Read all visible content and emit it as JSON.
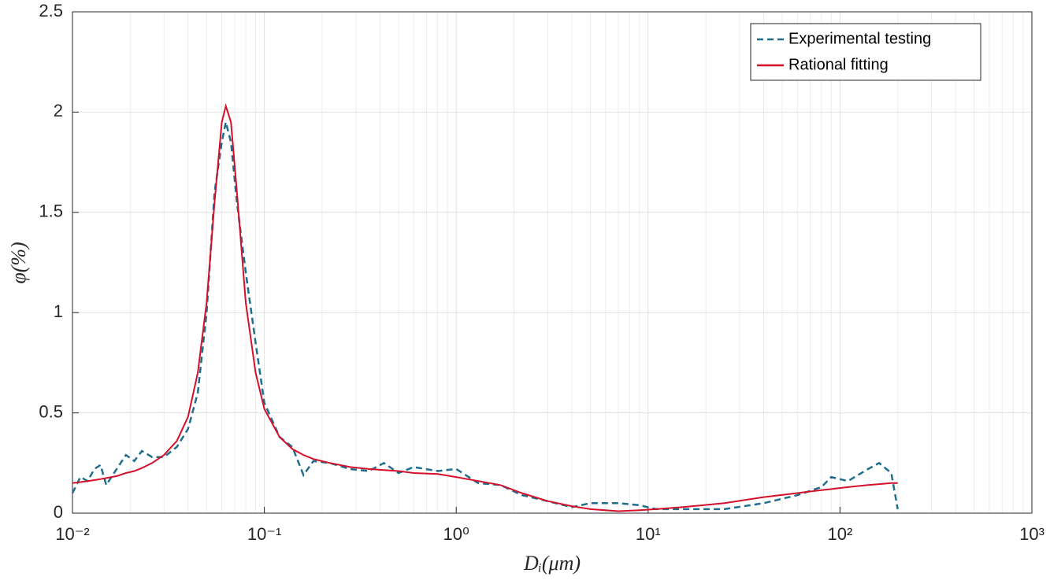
{
  "chart_data": {
    "type": "line",
    "x_label": "Dᵢ(μm)",
    "y_label": "φ(%)",
    "x": [
      0.01,
      0.011,
      0.012,
      0.013,
      0.014,
      0.015,
      0.017,
      0.019,
      0.021,
      0.023,
      0.026,
      0.03,
      0.035,
      0.04,
      0.045,
      0.05,
      0.055,
      0.06,
      0.063,
      0.067,
      0.072,
      0.08,
      0.09,
      0.1,
      0.12,
      0.14,
      0.16,
      0.18,
      0.22,
      0.28,
      0.35,
      0.42,
      0.5,
      0.6,
      0.8,
      1.0,
      1.3,
      1.7,
      2.2,
      3,
      4,
      5,
      7,
      9,
      11,
      15,
      25,
      40,
      60,
      80,
      90,
      110,
      140,
      160,
      185,
      200
    ],
    "series": [
      {
        "name": "Experimental testing",
        "color": "#1f6e8c",
        "dashed": true,
        "values": [
          0.1,
          0.18,
          0.16,
          0.22,
          0.24,
          0.14,
          0.22,
          0.29,
          0.26,
          0.31,
          0.28,
          0.28,
          0.33,
          0.42,
          0.6,
          1.0,
          1.6,
          1.85,
          1.95,
          1.85,
          1.55,
          1.2,
          0.85,
          0.55,
          0.38,
          0.33,
          0.19,
          0.26,
          0.25,
          0.22,
          0.21,
          0.25,
          0.2,
          0.23,
          0.21,
          0.22,
          0.15,
          0.14,
          0.09,
          0.06,
          0.03,
          0.05,
          0.05,
          0.04,
          0.02,
          0.02,
          0.02,
          0.05,
          0.09,
          0.13,
          0.18,
          0.16,
          0.22,
          0.25,
          0.2,
          0.02
        ]
      },
      {
        "name": "Rational fitting",
        "color": "#d4102a",
        "dashed": false,
        "values": [
          0.15,
          0.155,
          0.16,
          0.165,
          0.17,
          0.175,
          0.185,
          0.2,
          0.21,
          0.225,
          0.25,
          0.29,
          0.36,
          0.48,
          0.7,
          1.05,
          1.55,
          1.95,
          2.03,
          1.95,
          1.6,
          1.05,
          0.7,
          0.52,
          0.38,
          0.32,
          0.29,
          0.27,
          0.25,
          0.23,
          0.22,
          0.215,
          0.21,
          0.2,
          0.195,
          0.18,
          0.16,
          0.14,
          0.1,
          0.06,
          0.035,
          0.02,
          0.01,
          0.015,
          0.02,
          0.03,
          0.05,
          0.08,
          0.1,
          0.115,
          0.12,
          0.13,
          0.14,
          0.145,
          0.15,
          0.15
        ]
      }
    ],
    "xscale": "log",
    "xlim": [
      0.01,
      1000
    ],
    "ylim": [
      0,
      2.5
    ],
    "xticks": [
      {
        "value": 0.01,
        "label": "10⁻²"
      },
      {
        "value": 0.1,
        "label": "10⁻¹"
      },
      {
        "value": 1,
        "label": "10⁰"
      },
      {
        "value": 10,
        "label": "10¹"
      },
      {
        "value": 100,
        "label": "10²"
      },
      {
        "value": 1000,
        "label": "10³"
      }
    ],
    "yticks": [
      0,
      0.5,
      1,
      1.5,
      2,
      2.5
    ],
    "grid": true,
    "minor_grid": true,
    "legend": "upper right"
  }
}
